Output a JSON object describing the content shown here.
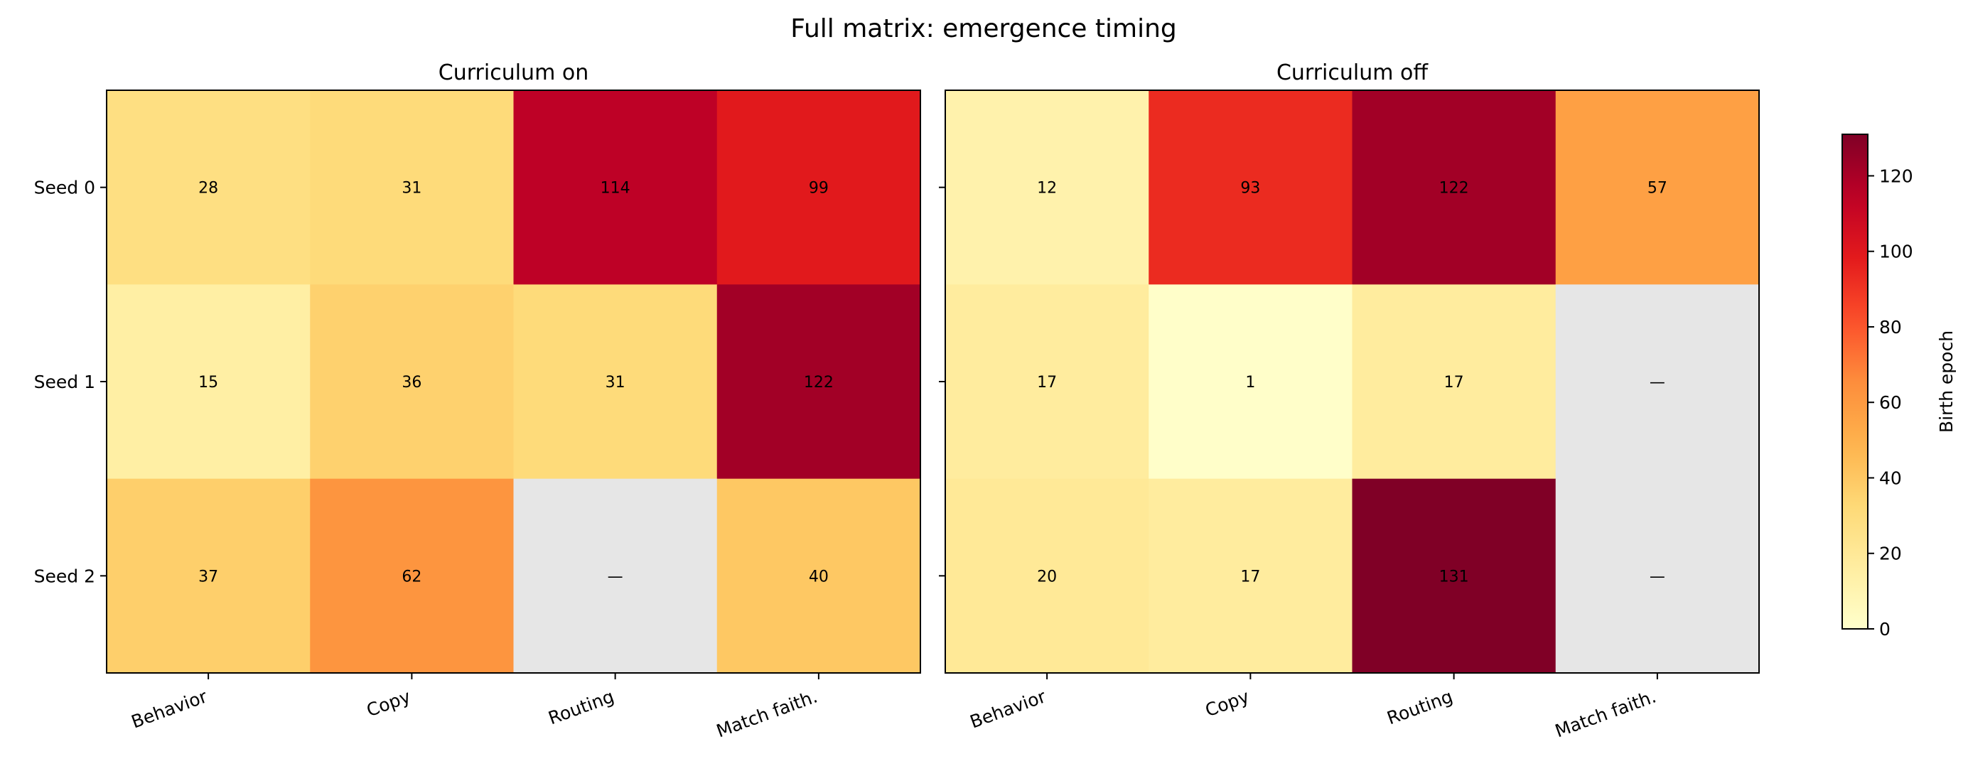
{
  "chart_data": {
    "type": "heatmap",
    "title": "Full matrix: emergence timing",
    "colormap": "YlOrRd",
    "missing_color": "#e6e6e6",
    "missing_label": "—",
    "rows": [
      "Seed 0",
      "Seed 1",
      "Seed 2"
    ],
    "columns": [
      "Behavior",
      "Copy",
      "Routing",
      "Match faith."
    ],
    "panels": [
      {
        "title": "Curriculum on",
        "values": [
          [
            28,
            31,
            114,
            99
          ],
          [
            15,
            36,
            31,
            122
          ],
          [
            37,
            62,
            null,
            40
          ]
        ]
      },
      {
        "title": "Curriculum off",
        "values": [
          [
            12,
            93,
            122,
            57
          ],
          [
            17,
            1,
            17,
            null
          ],
          [
            20,
            17,
            131,
            null
          ]
        ]
      }
    ],
    "colorbar": {
      "label": "Birth epoch",
      "range": [
        0,
        131
      ],
      "ticks": [
        0,
        20,
        40,
        60,
        80,
        100,
        120
      ]
    }
  }
}
